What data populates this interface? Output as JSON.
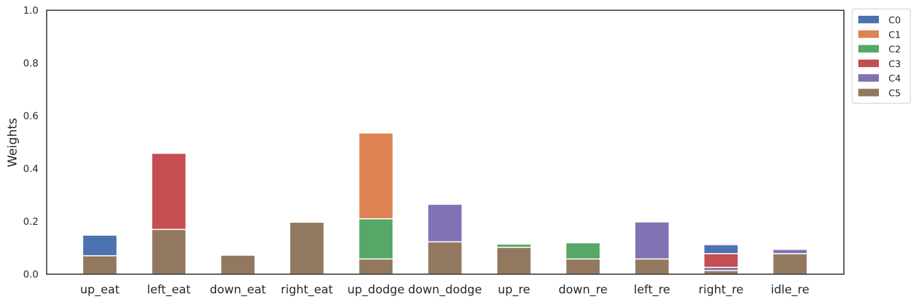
{
  "chart_data": {
    "type": "bar",
    "stacked": true,
    "ylabel": "Weights",
    "xlabel": "",
    "ylim": [
      0,
      1
    ],
    "yticks": [
      "0.0",
      "0.2",
      "0.4",
      "0.6",
      "0.8",
      "1.0"
    ],
    "grid": false,
    "legend_position": "outside-top-right",
    "categories": [
      "up_eat",
      "left_eat",
      "down_eat",
      "right_eat",
      "up_dodge",
      "down_dodge",
      "up_re",
      "down_re",
      "left_re",
      "right_re",
      "idle_re"
    ],
    "series": [
      {
        "name": "C5",
        "color": "#937860",
        "values": [
          0.07,
          0.17,
          0.072,
          0.197,
          0.058,
          0.123,
          0.102,
          0.058,
          0.058,
          0.014,
          0.078
        ]
      },
      {
        "name": "C4",
        "color": "#8172b3",
        "values": [
          0,
          0,
          0,
          0,
          0,
          0.142,
          0,
          0,
          0.14,
          0.012,
          0.016
        ]
      },
      {
        "name": "C2",
        "color": "#55a868",
        "values": [
          0,
          0,
          0,
          0,
          0.152,
          0,
          0.012,
          0.061,
          0,
          0,
          0
        ]
      },
      {
        "name": "C3",
        "color": "#c44e52",
        "values": [
          0,
          0.288,
          0,
          0,
          0,
          0,
          0,
          0,
          0,
          0.052,
          0
        ]
      },
      {
        "name": "C1",
        "color": "#dd8452",
        "values": [
          0,
          0,
          0,
          0,
          0.325,
          0,
          0,
          0,
          0,
          0,
          0
        ]
      },
      {
        "name": "C0",
        "color": "#4c72b0",
        "values": [
          0.078,
          0,
          0,
          0,
          0,
          0,
          0,
          0,
          0,
          0.034,
          0
        ]
      }
    ],
    "legend_order": [
      "C0",
      "C1",
      "C2",
      "C3",
      "C4",
      "C5"
    ]
  }
}
